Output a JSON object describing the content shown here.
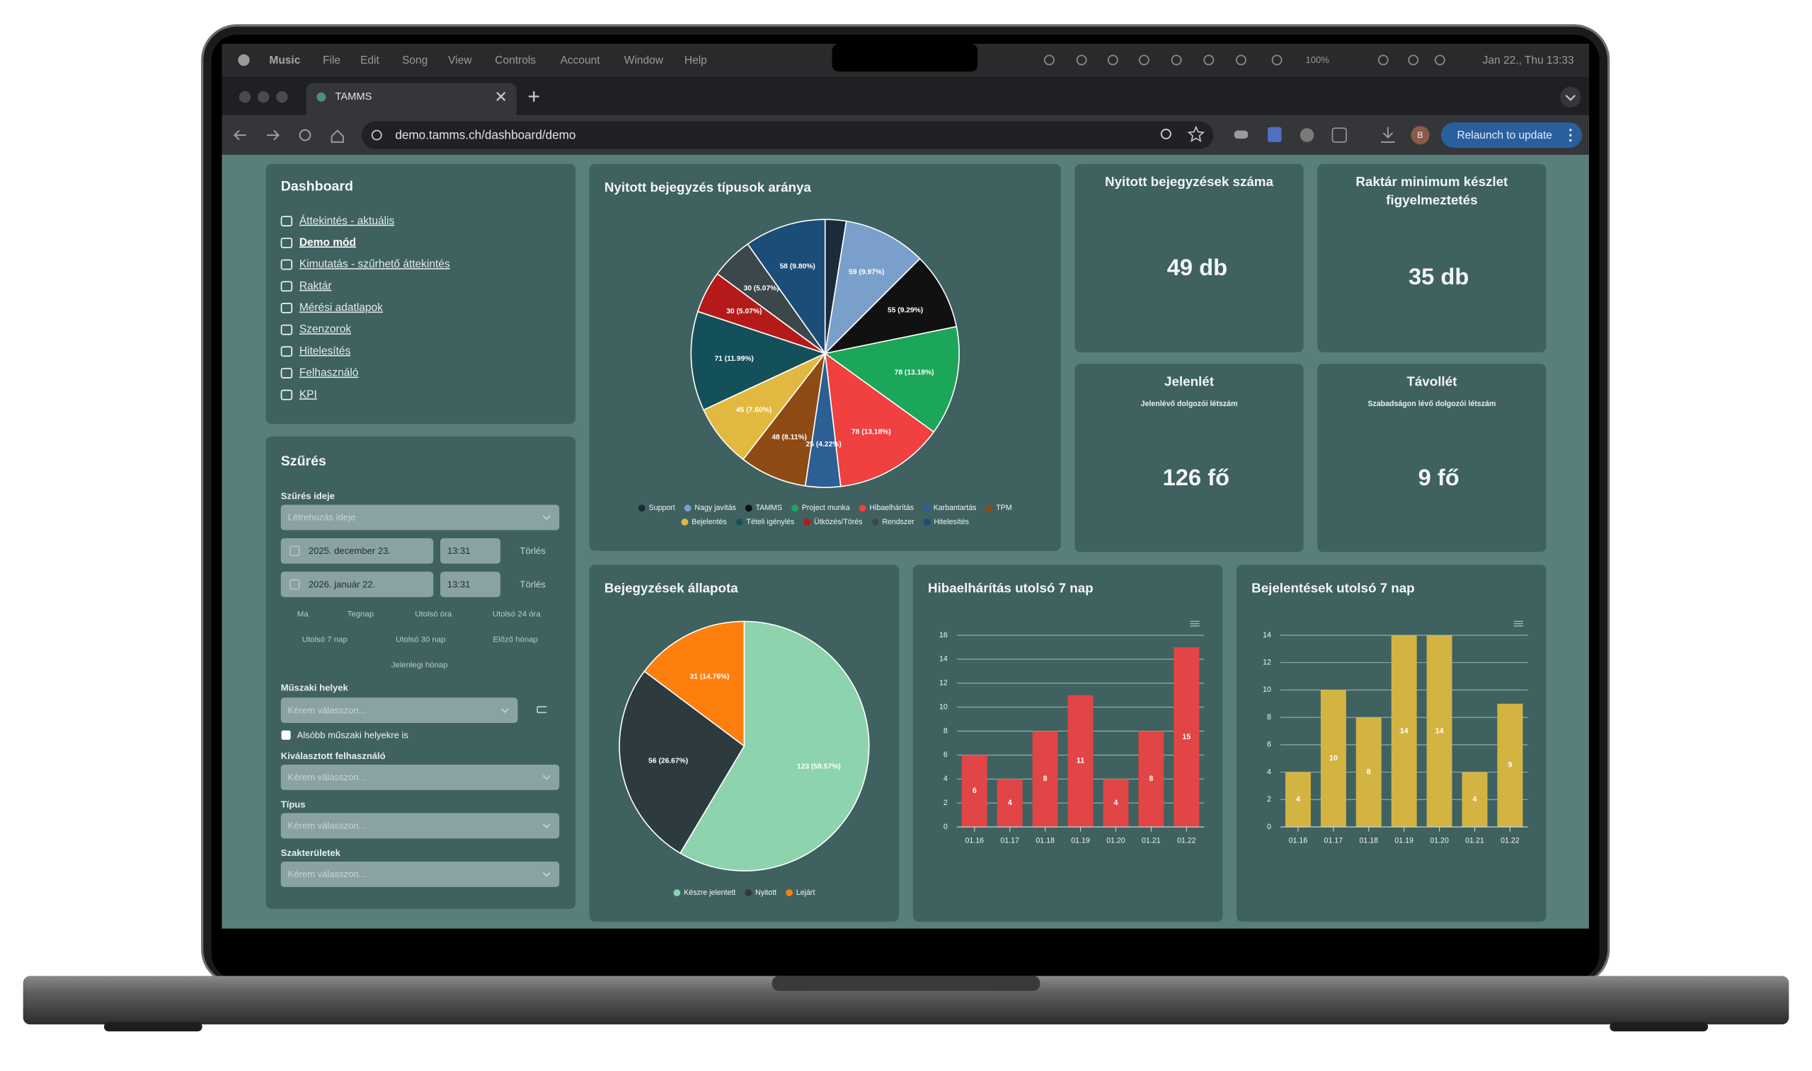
{
  "menubar": {
    "app": "Music",
    "menus": [
      "File",
      "Edit",
      "Song",
      "View",
      "Controls",
      "Account",
      "Window",
      "Help"
    ],
    "battery": "100%",
    "clock": "Jan 22., Thu 13:33"
  },
  "browser": {
    "tab": "TAMMS",
    "url": "demo.tamms.ch/dashboard/demo",
    "profile": "B",
    "update_button": "Relaunch to update"
  },
  "nav": {
    "title": "Dashboard",
    "items": [
      "Áttekintés - aktuális",
      "Demo mód",
      "Kimutatás - szűrhető áttekintés",
      "Raktár",
      "Mérési adatlapok",
      "Szenzorok",
      "Hitelesítés",
      "Felhasználó",
      "KPI"
    ]
  },
  "filter": {
    "title": "Szűrés",
    "time_label": "Szűrés ideje",
    "time_select": "Létrehozás ideje",
    "ranges": [
      {
        "date": "2025. december 23.",
        "time": "13:31",
        "clear": "Törlés"
      },
      {
        "date": "2026. január 22.",
        "time": "13:31",
        "clear": "Törlés"
      }
    ],
    "quick": [
      "Ma",
      "Tegnap",
      "Utolsó óra",
      "Utolsó 24 óra",
      "Utolsó 7 nap",
      "Utolsó 30 nap",
      "Előző hónap",
      "Jelenlegi hónap"
    ],
    "places_label": "Műszaki helyek",
    "places_select": "Kérem válasszon...",
    "sub_places": "Alsóbb műszaki helyekre is",
    "user_label": "Kiválasztott felhasználó",
    "user_select": "Kérem válasszon...",
    "type_label": "Típus",
    "type_select": "Kérem válasszon...",
    "field_label": "Szakterületek",
    "field_select": "Kérem válasszon..."
  },
  "cards": [
    {
      "title": "Nyitott bejegyzések száma",
      "value": "49 db"
    },
    {
      "title": "Raktár minimum készlet figyelmeztetés",
      "value": "35 db"
    },
    {
      "title": "Jelenlét",
      "subtitle": "Jelenlévő dolgozói létszám",
      "value": "126 fő"
    },
    {
      "title": "Távollét",
      "subtitle": "Szabadságon lévő dolgozói létszám",
      "value": "9 fő"
    }
  ],
  "chart_data": [
    {
      "type": "pie",
      "title": "Nyitott bejegyzés típusok aránya",
      "categories": [
        "Support",
        "Nagy javítás",
        "TAMMS",
        "Project munka",
        "Hibaelhárítás",
        "Karbantartás",
        "TPM",
        "Bejelentés",
        "Tételi igénylés",
        "Ütközés/Törés",
        "Rendszer",
        "Hitelesítés"
      ],
      "values": [
        15,
        59,
        55,
        78,
        78,
        25,
        48,
        45,
        71,
        30,
        30,
        58
      ],
      "value_labels": [
        null,
        "59 (9.97%)",
        "55 (9.29%)",
        "78 (13.18%)",
        "78 (13.18%)",
        "25 (4.22%)",
        "48 (8.11%)",
        "45 (7.60%)",
        "71 (11.99%)",
        "30 (5.07%)",
        "30 (5.07%)",
        "58 (9.80%)"
      ],
      "colors": [
        "#1c2b3a",
        "#7b9fcb",
        "#111111",
        "#1ba65a",
        "#f0403f",
        "#2c5f93",
        "#8e4b14",
        "#e2b940",
        "#14505a",
        "#b51a1a",
        "#3b474a",
        "#1b4d78"
      ]
    },
    {
      "type": "pie",
      "title": "Bejegyzések állapota",
      "categories": [
        "Készre jelentett",
        "Nyitott",
        "Lejárt"
      ],
      "values": [
        123,
        56,
        31
      ],
      "value_labels": [
        "123 (58.57%)",
        "56 (26.67%)",
        "31 (14.76%)"
      ],
      "colors": [
        "#8dd3ad",
        "#2d3b3e",
        "#ff7f0e"
      ]
    },
    {
      "type": "bar",
      "title": "Hibaelhárítás utolsó 7 nap",
      "categories": [
        "01.16",
        "01.17",
        "01.18",
        "01.19",
        "01.20",
        "01.21",
        "01.22"
      ],
      "values": [
        6,
        4,
        8,
        11,
        4,
        8,
        15
      ],
      "color": "#e24545",
      "ylim": [
        0,
        16
      ],
      "yticks": [
        0,
        2,
        4,
        6,
        8,
        10,
        12,
        14,
        16
      ],
      "grid": true
    },
    {
      "type": "bar",
      "title": "Bejelentések utolsó 7 nap",
      "categories": [
        "01.16",
        "01.17",
        "01.18",
        "01.19",
        "01.20",
        "01.21",
        "01.22"
      ],
      "values": [
        4,
        10,
        8,
        14,
        14,
        4,
        9
      ],
      "color": "#d3b443",
      "ylim": [
        0,
        14
      ],
      "yticks": [
        0,
        2,
        4,
        6,
        8,
        10,
        12,
        14
      ],
      "grid": true
    }
  ]
}
